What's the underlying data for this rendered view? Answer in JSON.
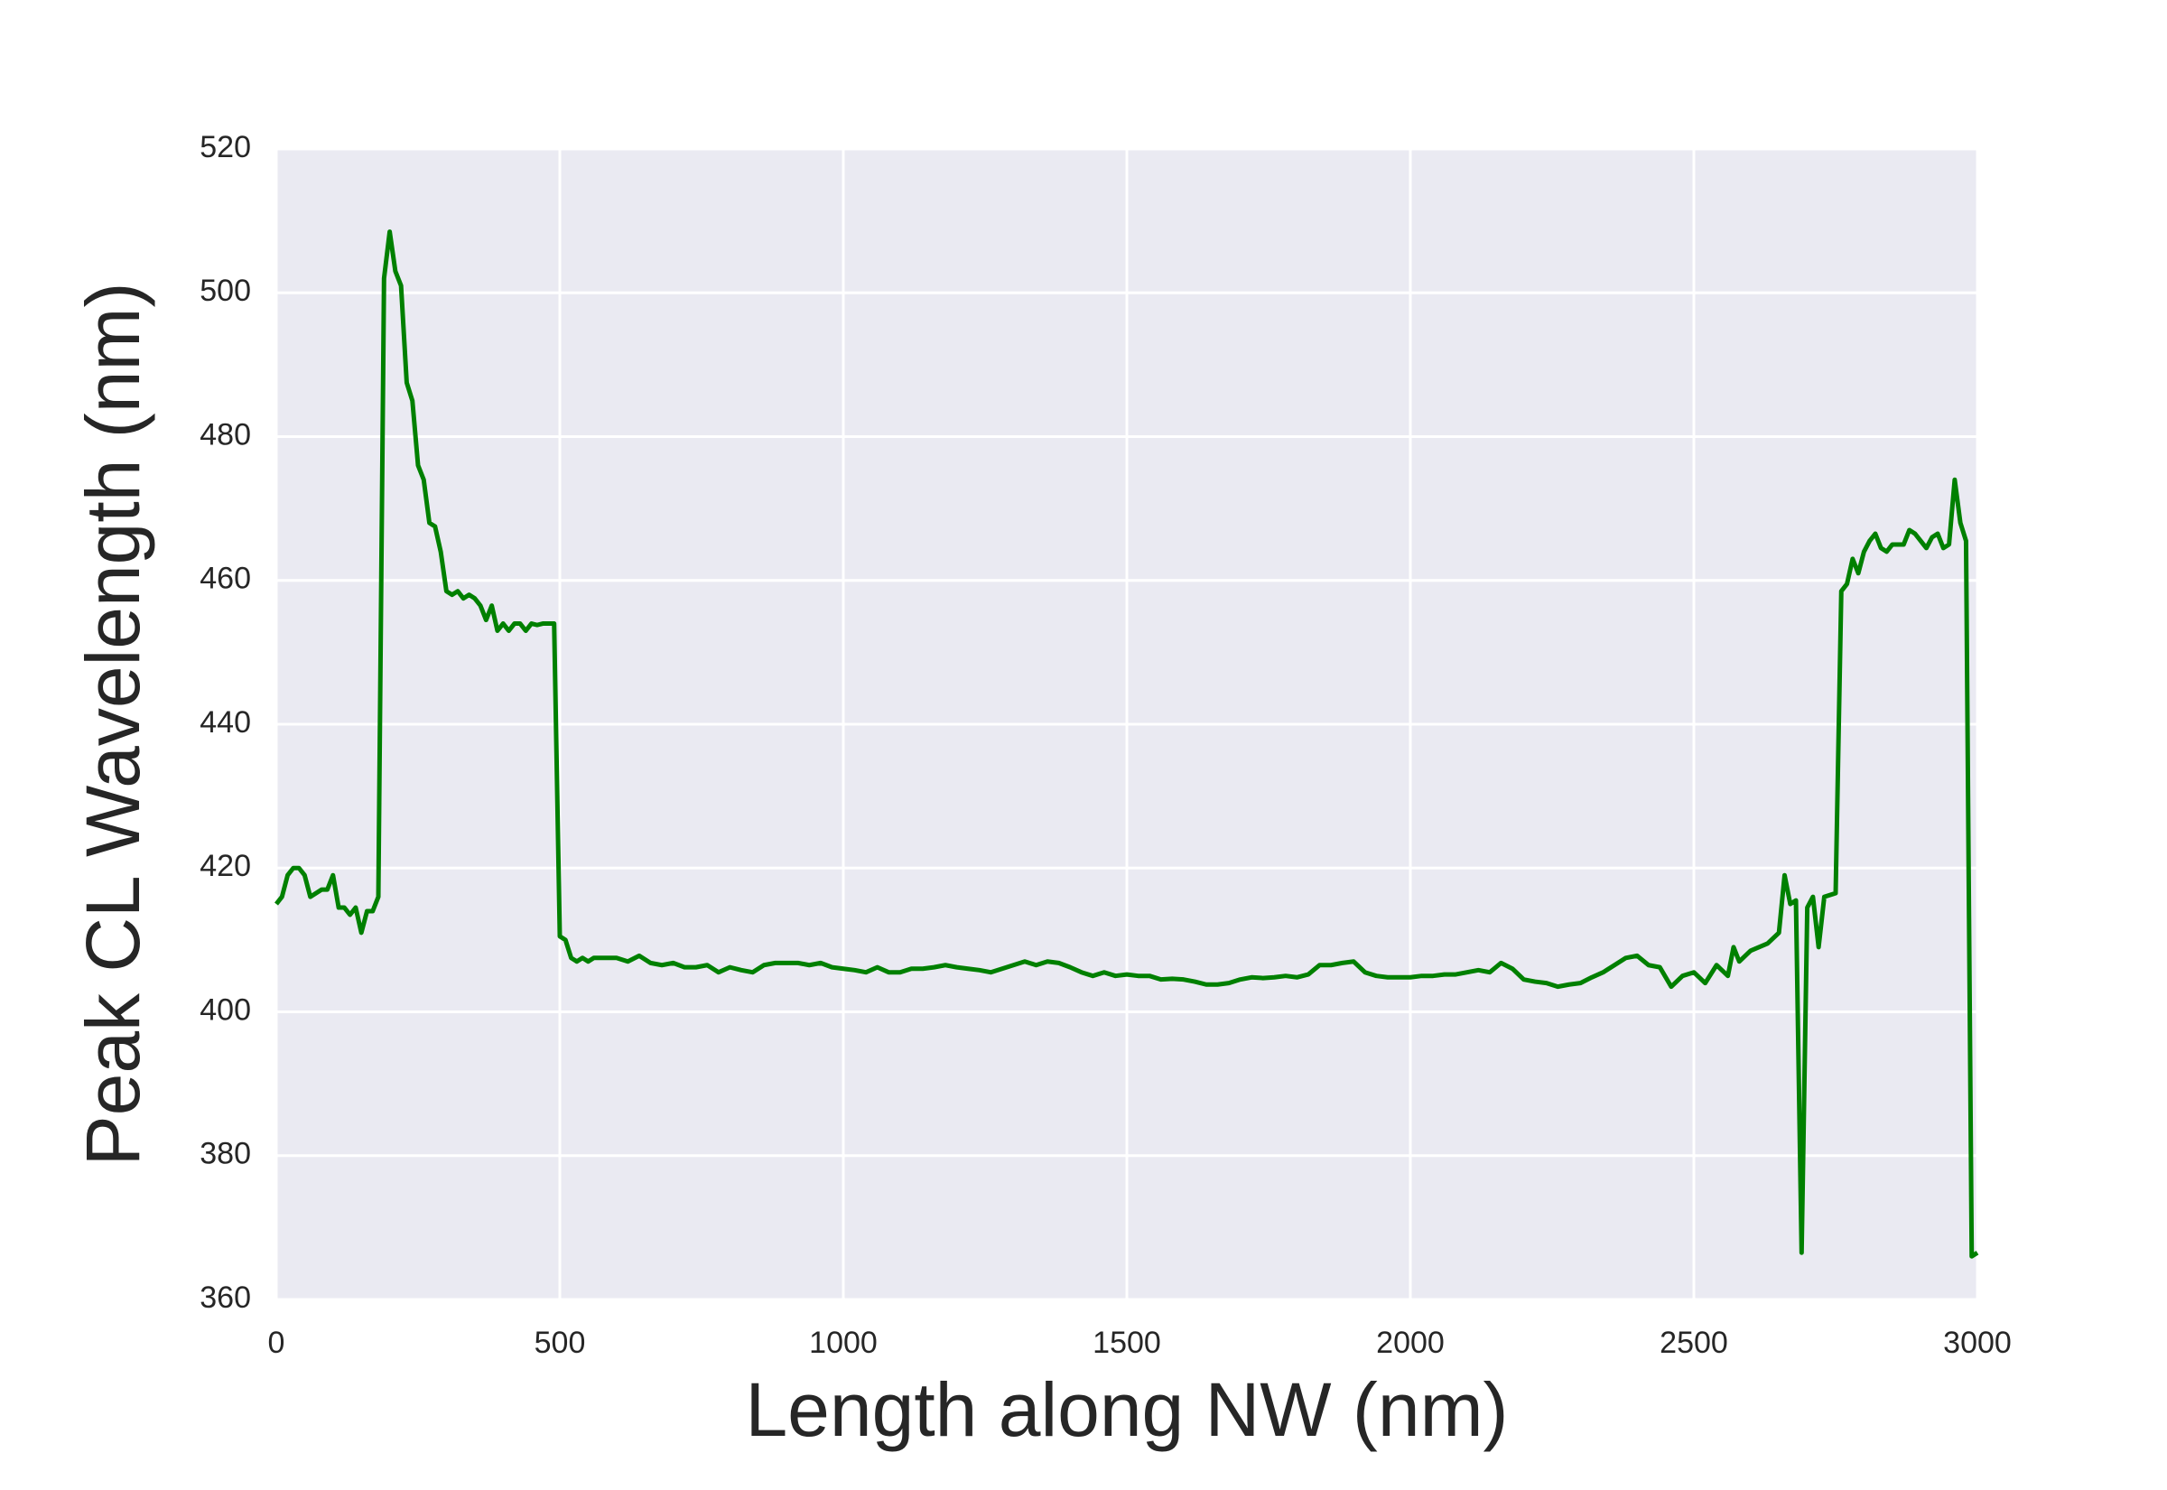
{
  "chart_data": {
    "type": "line",
    "xlabel": "Length along NW (nm)",
    "ylabel": "Peak CL Wavelength (nm)",
    "color": "#008000",
    "grid": true,
    "xlim": [
      0,
      3000
    ],
    "xticks": [
      0,
      500,
      1000,
      1500,
      2000,
      2500,
      3000
    ],
    "ylim": [
      360,
      520
    ],
    "yticks": [
      360,
      380,
      400,
      420,
      440,
      460,
      480,
      500,
      520
    ],
    "x": [
      0,
      10,
      20,
      30,
      40,
      50,
      60,
      70,
      80,
      90,
      100,
      110,
      120,
      130,
      140,
      150,
      160,
      170,
      180,
      190,
      200,
      210,
      220,
      230,
      240,
      250,
      260,
      270,
      280,
      290,
      300,
      310,
      320,
      330,
      340,
      350,
      360,
      370,
      380,
      390,
      400,
      410,
      420,
      430,
      440,
      450,
      460,
      470,
      480,
      490,
      500,
      510,
      520,
      530,
      540,
      550,
      560,
      580,
      600,
      620,
      640,
      660,
      680,
      700,
      720,
      740,
      760,
      780,
      800,
      820,
      840,
      860,
      880,
      900,
      920,
      940,
      960,
      980,
      1000,
      1020,
      1040,
      1060,
      1080,
      1100,
      1120,
      1140,
      1160,
      1180,
      1200,
      1220,
      1240,
      1260,
      1280,
      1300,
      1320,
      1340,
      1360,
      1380,
      1400,
      1420,
      1440,
      1460,
      1480,
      1500,
      1520,
      1540,
      1560,
      1580,
      1600,
      1620,
      1640,
      1660,
      1680,
      1700,
      1720,
      1740,
      1760,
      1780,
      1800,
      1820,
      1840,
      1860,
      1880,
      1900,
      1920,
      1940,
      1960,
      1980,
      2000,
      2020,
      2040,
      2060,
      2080,
      2100,
      2120,
      2140,
      2160,
      2180,
      2200,
      2220,
      2240,
      2260,
      2280,
      2300,
      2320,
      2340,
      2360,
      2380,
      2400,
      2420,
      2440,
      2460,
      2480,
      2500,
      2520,
      2540,
      2560,
      2570,
      2580,
      2600,
      2630,
      2650,
      2660,
      2670,
      2680,
      2690,
      2700,
      2710,
      2720,
      2730,
      2750,
      2760,
      2770,
      2780,
      2790,
      2800,
      2810,
      2820,
      2830,
      2840,
      2850,
      2860,
      2870,
      2880,
      2890,
      2900,
      2910,
      2920,
      2930,
      2940,
      2950,
      2960,
      2970,
      2980,
      2990,
      3000
    ],
    "values": [
      415,
      416,
      419,
      420,
      420,
      419,
      416,
      416.5,
      417,
      417,
      419,
      414.5,
      414.5,
      413.5,
      414.5,
      411,
      414,
      414,
      416,
      502,
      508.5,
      503,
      501,
      487.5,
      485,
      476,
      474,
      468,
      467.5,
      464,
      458.5,
      458,
      458.5,
      457.5,
      458,
      457.5,
      456.5,
      454.5,
      456.5,
      453,
      454,
      453,
      454,
      454,
      453,
      454,
      453.8,
      454,
      454,
      454,
      410.5,
      410,
      407.5,
      407,
      407.5,
      407,
      407.5,
      407.5,
      407.5,
      407,
      407.8,
      406.8,
      406.5,
      406.8,
      406.2,
      406.2,
      406.5,
      405.5,
      406.2,
      405.8,
      405.5,
      406.5,
      406.8,
      406.8,
      406.8,
      406.5,
      406.8,
      406.2,
      406,
      405.8,
      405.5,
      406.2,
      405.5,
      405.5,
      406,
      406,
      406.2,
      406.5,
      406.2,
      406,
      405.8,
      405.5,
      406,
      406.5,
      407,
      406.5,
      407,
      406.8,
      406.2,
      405.5,
      405,
      405.5,
      405,
      405.2,
      405,
      405,
      404.5,
      404.6,
      404.5,
      404.2,
      403.8,
      403.8,
      404,
      404.5,
      404.8,
      404.7,
      404.8,
      405,
      404.8,
      405.2,
      406.5,
      406.5,
      406.8,
      407,
      405.5,
      405,
      404.8,
      404.8,
      404.8,
      405,
      405,
      405.2,
      405.2,
      405.5,
      405.8,
      405.5,
      406.8,
      406,
      404.5,
      404.2,
      404,
      403.5,
      403.8,
      404,
      404.8,
      405.5,
      406.5,
      407.5,
      407.8,
      406.5,
      406.2,
      403.5,
      405,
      405.5,
      404,
      406.5,
      405,
      409,
      407,
      408.5,
      409.5,
      411,
      419,
      415,
      415.5,
      366.5,
      414.5,
      416,
      409,
      416,
      416.5,
      458.5,
      459.5,
      463,
      461,
      464,
      465.5,
      466.5,
      464.5,
      464,
      465,
      465,
      465,
      467,
      466.5,
      465.5,
      464.5,
      466,
      466.5,
      464.5,
      465,
      474,
      468,
      465.5,
      366,
      366.5
    ]
  }
}
